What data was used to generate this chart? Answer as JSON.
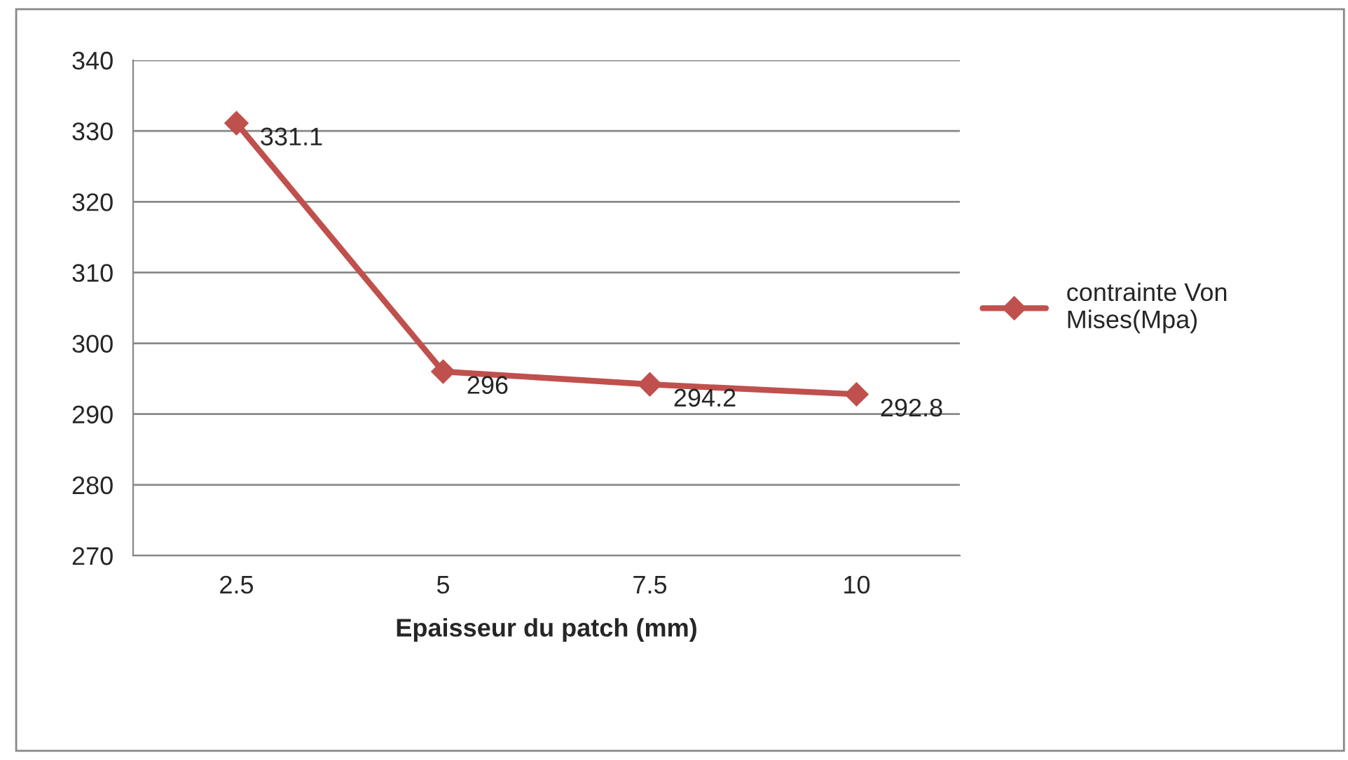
{
  "chart_data": {
    "type": "line",
    "xlabel": "Epaisseur du patch (mm)",
    "categories": [
      "2.5",
      "5",
      "7.5",
      "10"
    ],
    "series": [
      {
        "name": "contrainte Von Mises(Mpa)",
        "color": "#c0504d",
        "values": [
          331.1,
          296,
          294.2,
          292.8
        ]
      }
    ],
    "ylim": [
      270,
      340
    ],
    "yticks": [
      270,
      280,
      290,
      300,
      310,
      320,
      330,
      340
    ],
    "grid": "y",
    "legend": "right",
    "marker": "diamond",
    "data_labels": true
  }
}
